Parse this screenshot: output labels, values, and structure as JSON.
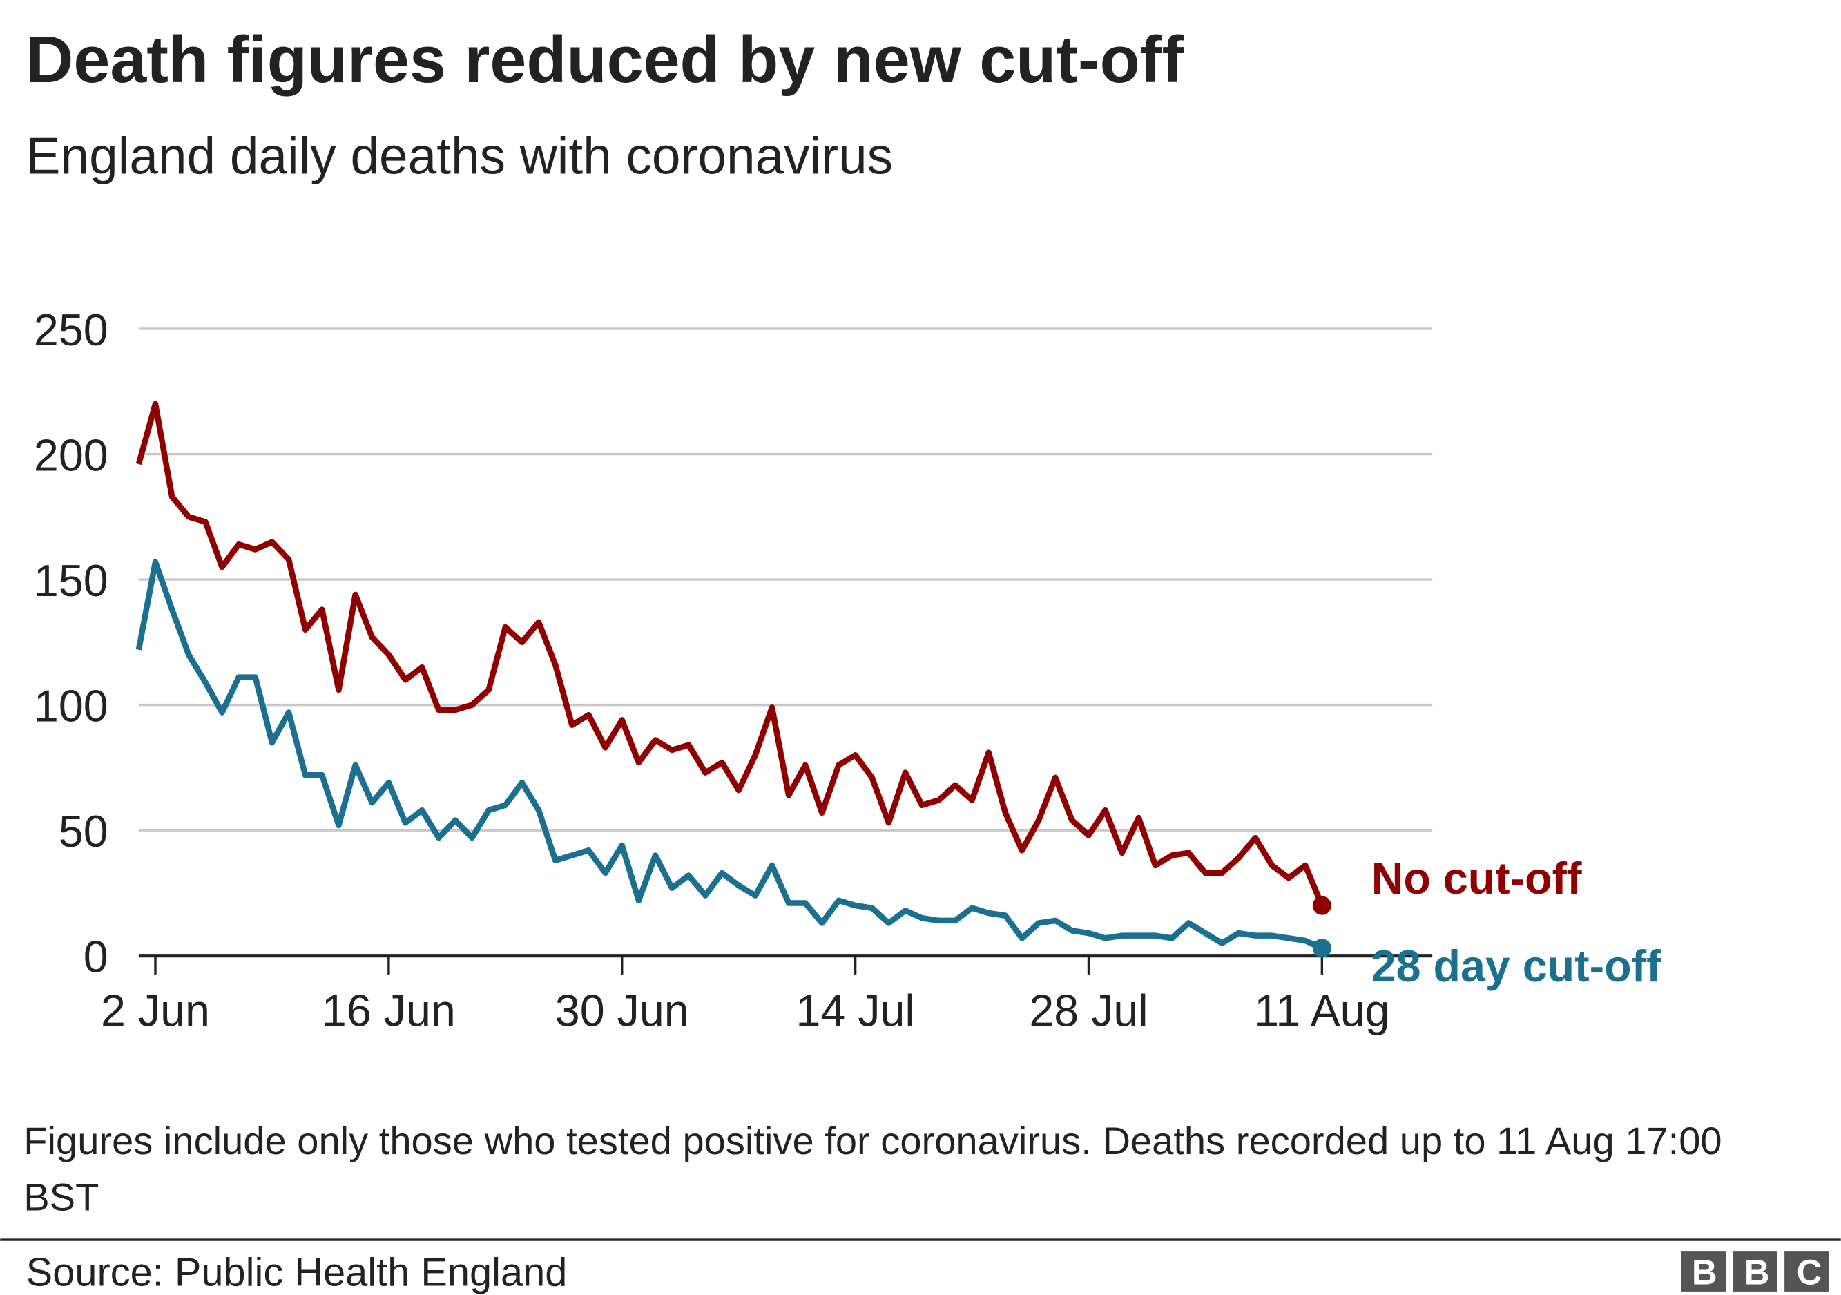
{
  "chart_data": {
    "type": "line",
    "title": "Death figures reduced by new cut-off",
    "subtitle": "England daily deaths with coronavirus",
    "x": [
      "1 Jun",
      "2 Jun",
      "3 Jun",
      "4 Jun",
      "5 Jun",
      "6 Jun",
      "7 Jun",
      "8 Jun",
      "9 Jun",
      "10 Jun",
      "11 Jun",
      "12 Jun",
      "13 Jun",
      "14 Jun",
      "15 Jun",
      "16 Jun",
      "17 Jun",
      "18 Jun",
      "19 Jun",
      "20 Jun",
      "21 Jun",
      "22 Jun",
      "23 Jun",
      "24 Jun",
      "25 Jun",
      "26 Jun",
      "27 Jun",
      "28 Jun",
      "29 Jun",
      "30 Jun",
      "1 Jul",
      "2 Jul",
      "3 Jul",
      "4 Jul",
      "5 Jul",
      "6 Jul",
      "7 Jul",
      "8 Jul",
      "9 Jul",
      "10 Jul",
      "11 Jul",
      "12 Jul",
      "13 Jul",
      "14 Jul",
      "15 Jul",
      "16 Jul",
      "17 Jul",
      "18 Jul",
      "19 Jul",
      "20 Jul",
      "21 Jul",
      "22 Jul",
      "23 Jul",
      "24 Jul",
      "25 Jul",
      "26 Jul",
      "27 Jul",
      "28 Jul",
      "29 Jul",
      "30 Jul",
      "31 Jul",
      "1 Aug",
      "2 Aug",
      "3 Aug",
      "4 Aug",
      "5 Aug",
      "6 Aug",
      "7 Aug",
      "8 Aug",
      "9 Aug",
      "10 Aug",
      "11 Aug"
    ],
    "xticks": [
      "2 Jun",
      "16 Jun",
      "30 Jun",
      "14 Jul",
      "28 Jul",
      "11 Aug"
    ],
    "series": [
      {
        "name": "No cut-off",
        "color": "#900000",
        "values": [
          196,
          220,
          183,
          175,
          173,
          155,
          164,
          162,
          165,
          158,
          130,
          138,
          106,
          144,
          127,
          120,
          110,
          115,
          98,
          98,
          100,
          106,
          131,
          125,
          133,
          116,
          92,
          96,
          83,
          94,
          77,
          86,
          82,
          84,
          73,
          77,
          66,
          80,
          99,
          64,
          76,
          57,
          76,
          80,
          71,
          53,
          73,
          60,
          62,
          68,
          62,
          81,
          57,
          42,
          54,
          71,
          54,
          48,
          58,
          41,
          55,
          36,
          40,
          41,
          33,
          33,
          39,
          47,
          36,
          31,
          36,
          20
        ]
      },
      {
        "name": "28 day cut-off",
        "color": "#1b6f8f",
        "values": [
          122,
          157,
          138,
          120,
          109,
          97,
          111,
          111,
          85,
          97,
          72,
          72,
          52,
          76,
          61,
          69,
          53,
          58,
          47,
          54,
          47,
          58,
          60,
          69,
          58,
          38,
          40,
          42,
          33,
          44,
          22,
          40,
          27,
          32,
          24,
          33,
          28,
          24,
          36,
          21,
          21,
          13,
          22,
          20,
          19,
          13,
          18,
          15,
          14,
          14,
          19,
          17,
          16,
          7,
          13,
          14,
          10,
          9,
          7,
          8,
          8,
          8,
          7,
          13,
          9,
          5,
          9,
          8,
          8,
          7,
          6,
          3
        ]
      }
    ],
    "ylim": [
      0,
      250
    ],
    "yticks": [
      0,
      50,
      100,
      150,
      200,
      250
    ],
    "grid": true,
    "note": "Figures include only those who tested positive for coronavirus. Deaths recorded up to 11 Aug 17:00 BST",
    "source": "Source: Public Health England",
    "logo": "BBC"
  }
}
